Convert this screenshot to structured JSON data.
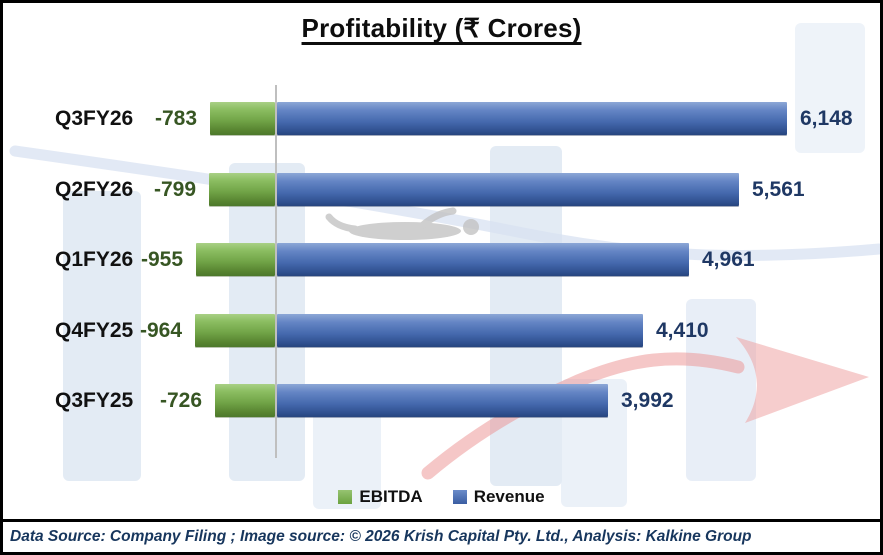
{
  "title": "Profitability (₹ Crores)",
  "chart_data": {
    "type": "bar",
    "orientation": "horizontal",
    "title": "Profitability (₹ Crores)",
    "categories": [
      "Q3FY26",
      "Q2FY26",
      "Q1FY26",
      "Q4FY25",
      "Q3FY25"
    ],
    "series": [
      {
        "name": "EBITDA",
        "color": "#70ad47",
        "values": [
          -783,
          -799,
          -955,
          -964,
          -726
        ]
      },
      {
        "name": "Revenue",
        "color": "#4472c4",
        "values": [
          6148,
          5561,
          4961,
          4410,
          3992
        ]
      }
    ],
    "value_labels": true,
    "grid": false,
    "legend_position": "bottom",
    "zero_baseline": true
  },
  "colors": {
    "ebitda_bar_green": "#70ad47",
    "revenue_bar_blue": "#4472c4",
    "ebitda_value_text": "#375623",
    "revenue_value_text": "#1f3864",
    "axis_line": "#bfbfbf",
    "footer_text": "#17365d",
    "watermark_blue": "#ccdaec",
    "watermark_arrow_red": "#ee9b9b"
  },
  "footer": {
    "text": "Data Source: Company Filing ; Image source: © 2026 Krish Capital Pty. Ltd., Analysis: Kalkine Group"
  }
}
